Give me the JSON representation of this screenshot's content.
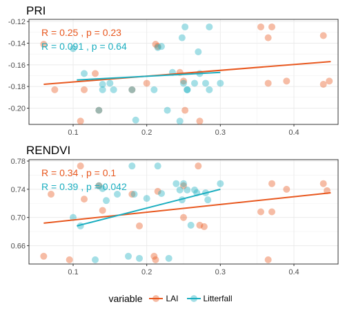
{
  "colors": {
    "lai": "#E8571E",
    "litterfall": "#1BAEC0"
  },
  "legend": {
    "title": "variable",
    "items": [
      "LAI",
      "Litterfall"
    ]
  },
  "chart_data": [
    {
      "type": "scatter",
      "title": "PRI",
      "xlim": [
        0.04,
        0.46
      ],
      "ylim": [
        -0.215,
        -0.118
      ],
      "x_ticks": [
        0.1,
        0.2,
        0.3,
        0.4
      ],
      "x_tick_labels": [
        "0.1",
        "0.2",
        "0.3",
        "0.4"
      ],
      "y_ticks": [
        -0.2,
        -0.18,
        -0.16,
        -0.14,
        -0.12
      ],
      "y_tick_labels": [
        "-0.20",
        "-0.18",
        "-0.16",
        "-0.14",
        "-0.12"
      ],
      "grid": true,
      "annotations": [
        {
          "series": "LAI",
          "text": "R = 0.25 , p = 0.23"
        },
        {
          "series": "Litterfall",
          "text": "R = 0.091 , p = 0.64"
        }
      ],
      "series": [
        {
          "name": "LAI",
          "points": [
            [
              0.06,
              -0.141
            ],
            [
              0.075,
              -0.183
            ],
            [
              0.11,
              -0.212
            ],
            [
              0.115,
              -0.183
            ],
            [
              0.13,
              -0.168
            ],
            [
              0.135,
              -0.202
            ],
            [
              0.18,
              -0.183
            ],
            [
              0.2,
              -0.177
            ],
            [
              0.212,
              -0.141
            ],
            [
              0.215,
              -0.143
            ],
            [
              0.245,
              -0.167
            ],
            [
              0.25,
              -0.175
            ],
            [
              0.252,
              -0.202
            ],
            [
              0.272,
              -0.212
            ],
            [
              0.355,
              -0.125
            ],
            [
              0.365,
              -0.135
            ],
            [
              0.37,
              -0.125
            ],
            [
              0.365,
              -0.177
            ],
            [
              0.39,
              -0.175
            ],
            [
              0.44,
              -0.133
            ],
            [
              0.44,
              -0.178
            ],
            [
              0.448,
              -0.175
            ]
          ],
          "trend": [
            [
              0.06,
              -0.178
            ],
            [
              0.45,
              -0.157
            ]
          ]
        },
        {
          "name": "Litterfall",
          "points": [
            [
              0.1,
              -0.145
            ],
            [
              0.115,
              -0.168
            ],
            [
              0.14,
              -0.178
            ],
            [
              0.14,
              -0.183
            ],
            [
              0.15,
              -0.177
            ],
            [
              0.155,
              -0.183
            ],
            [
              0.18,
              -0.183
            ],
            [
              0.185,
              -0.211
            ],
            [
              0.21,
              -0.183
            ],
            [
              0.215,
              -0.144
            ],
            [
              0.22,
              -0.143
            ],
            [
              0.228,
              -0.202
            ],
            [
              0.235,
              -0.167
            ],
            [
              0.245,
              -0.212
            ],
            [
              0.248,
              -0.135
            ],
            [
              0.25,
              -0.177
            ],
            [
              0.252,
              -0.125
            ],
            [
              0.255,
              -0.183
            ],
            [
              0.255,
              -0.183
            ],
            [
              0.265,
              -0.177
            ],
            [
              0.27,
              -0.148
            ],
            [
              0.272,
              -0.168
            ],
            [
              0.28,
              -0.177
            ],
            [
              0.285,
              -0.183
            ],
            [
              0.285,
              -0.125
            ],
            [
              0.3,
              -0.177
            ],
            [
              0.135,
              -0.202
            ]
          ],
          "trend": [
            [
              0.105,
              -0.174
            ],
            [
              0.3,
              -0.167
            ]
          ]
        }
      ]
    },
    {
      "type": "scatter",
      "title": "RENDVI",
      "xlim": [
        0.04,
        0.46
      ],
      "ylim": [
        0.634,
        0.782
      ],
      "x_ticks": [
        0.1,
        0.2,
        0.3,
        0.4
      ],
      "x_tick_labels": [
        "0.1",
        "0.2",
        "0.3",
        "0.4"
      ],
      "y_ticks": [
        0.66,
        0.7,
        0.74,
        0.78
      ],
      "y_tick_labels": [
        "0.66",
        "0.70",
        "0.74",
        "0.78"
      ],
      "grid": true,
      "annotations": [
        {
          "series": "LAI",
          "text": "R = 0.34 , p = 0.1"
        },
        {
          "series": "Litterfall",
          "text": "R = 0.39 , p = 0.042"
        }
      ],
      "series": [
        {
          "name": "LAI",
          "points": [
            [
              0.06,
              0.645
            ],
            [
              0.07,
              0.733
            ],
            [
              0.095,
              0.64
            ],
            [
              0.11,
              0.773
            ],
            [
              0.115,
              0.726
            ],
            [
              0.135,
              0.745
            ],
            [
              0.14,
              0.71
            ],
            [
              0.18,
              0.733
            ],
            [
              0.19,
              0.688
            ],
            [
              0.21,
              0.645
            ],
            [
              0.212,
              0.64
            ],
            [
              0.215,
              0.737
            ],
            [
              0.25,
              0.745
            ],
            [
              0.25,
              0.7
            ],
            [
              0.27,
              0.773
            ],
            [
              0.272,
              0.689
            ],
            [
              0.278,
              0.687
            ],
            [
              0.355,
              0.708
            ],
            [
              0.37,
              0.748
            ],
            [
              0.365,
              0.64
            ],
            [
              0.37,
              0.708
            ],
            [
              0.39,
              0.74
            ],
            [
              0.44,
              0.748
            ],
            [
              0.445,
              0.738
            ]
          ],
          "trend": [
            [
              0.06,
              0.692
            ],
            [
              0.45,
              0.735
            ]
          ]
        },
        {
          "name": "Litterfall",
          "points": [
            [
              0.1,
              0.7
            ],
            [
              0.11,
              0.688
            ],
            [
              0.13,
              0.64
            ],
            [
              0.14,
              0.741
            ],
            [
              0.145,
              0.724
            ],
            [
              0.16,
              0.733
            ],
            [
              0.175,
              0.645
            ],
            [
              0.18,
              0.773
            ],
            [
              0.183,
              0.733
            ],
            [
              0.19,
              0.642
            ],
            [
              0.2,
              0.727
            ],
            [
              0.215,
              0.773
            ],
            [
              0.22,
              0.734
            ],
            [
              0.23,
              0.642
            ],
            [
              0.24,
              0.748
            ],
            [
              0.245,
              0.739
            ],
            [
              0.248,
              0.725
            ],
            [
              0.25,
              0.748
            ],
            [
              0.255,
              0.739
            ],
            [
              0.26,
              0.689
            ],
            [
              0.265,
              0.739
            ],
            [
              0.268,
              0.735
            ],
            [
              0.28,
              0.735
            ],
            [
              0.283,
              0.725
            ],
            [
              0.3,
              0.748
            ],
            [
              0.135,
              0.745
            ]
          ],
          "trend": [
            [
              0.105,
              0.688
            ],
            [
              0.3,
              0.74
            ]
          ]
        }
      ]
    }
  ]
}
